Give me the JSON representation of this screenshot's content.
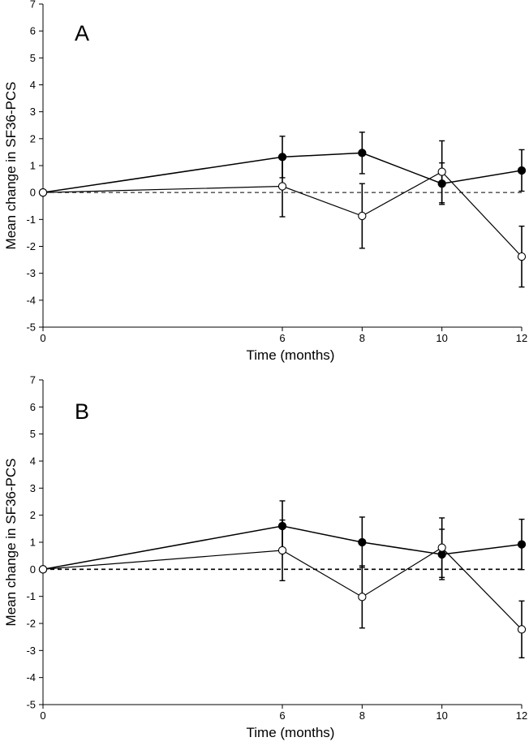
{
  "chart_data": [
    {
      "type": "line",
      "panel_label": "A",
      "xlabel": "Time (months)",
      "ylabel": "Mean change in SF36-PCS",
      "x": [
        0,
        6,
        8,
        10,
        12
      ],
      "x_ticks": [
        "0",
        "6",
        "8",
        "10",
        "12"
      ],
      "y_ticks": [
        "7",
        "6",
        "5",
        "4",
        "3",
        "2",
        "1",
        "0",
        "-1",
        "-2",
        "-3",
        "-4",
        "-5"
      ],
      "xlim": [
        0,
        12
      ],
      "ylim": [
        -5,
        7
      ],
      "grid": false,
      "reference_line": 0,
      "series": [
        {
          "marker": "filled-circle",
          "values": [
            0,
            1.32,
            1.47,
            0.33,
            0.82
          ],
          "error": [
            0,
            0.77,
            0.77,
            0.77,
            0.77
          ]
        },
        {
          "marker": "open-circle",
          "values": [
            0,
            0.23,
            -0.87,
            0.77,
            -2.38
          ],
          "error": [
            0,
            1.13,
            1.2,
            1.15,
            1.13
          ]
        }
      ]
    },
    {
      "type": "line",
      "panel_label": "B",
      "xlabel": "Time (months)",
      "ylabel": "Mean change in SF36-PCS",
      "x": [
        0,
        6,
        8,
        10,
        12
      ],
      "x_ticks": [
        "0",
        "6",
        "8",
        "10",
        "12"
      ],
      "y_ticks": [
        "7",
        "6",
        "5",
        "4",
        "3",
        "2",
        "1",
        "0",
        "-1",
        "-2",
        "-3",
        "-4",
        "-5"
      ],
      "xlim": [
        0,
        12
      ],
      "ylim": [
        -5,
        7
      ],
      "grid": false,
      "reference_line": 0,
      "series": [
        {
          "marker": "filled-circle",
          "values": [
            0,
            1.6,
            1.0,
            0.55,
            0.92
          ],
          "error": [
            0,
            0.93,
            0.93,
            0.93,
            0.93
          ]
        },
        {
          "marker": "open-circle",
          "values": [
            0,
            0.7,
            -1.02,
            0.8,
            -2.22
          ],
          "error": [
            0,
            1.12,
            1.15,
            1.1,
            1.05
          ]
        }
      ]
    }
  ]
}
